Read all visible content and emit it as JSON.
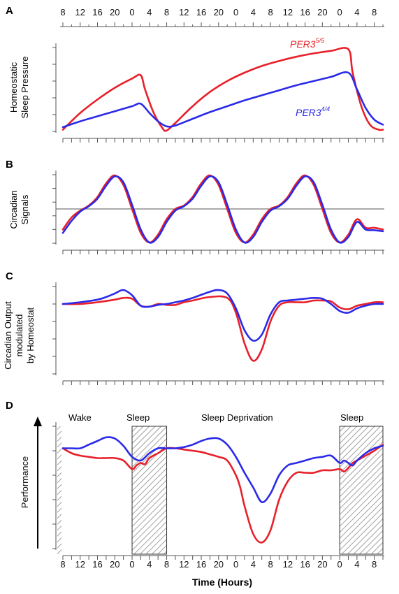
{
  "colors": {
    "red": "#e8202a",
    "blue": "#2a2ae8",
    "axis": "#555555",
    "hatch": "#888888"
  },
  "panel_letters": [
    "A",
    "B",
    "C",
    "D"
  ],
  "y_labels": {
    "A": [
      "Homeostatic",
      "Sleep Pressure"
    ],
    "B": [
      "Circadian",
      "Signals"
    ],
    "C": [
      "Circadian Output",
      "modulated",
      "by Homeostat"
    ],
    "D": [
      "Performance"
    ]
  },
  "x_label": "Time (Hours)",
  "top_ticks": [
    "8",
    "12",
    "16",
    "20",
    "0",
    "4",
    "8",
    "12",
    "16",
    "20",
    "0",
    "4",
    "8",
    "12",
    "16",
    "20",
    "0",
    "4",
    "8"
  ],
  "bottom_ticks": [
    "8",
    "12",
    "16",
    "20",
    "0",
    "4",
    "8",
    "12",
    "16",
    "20",
    "0",
    "4",
    "8",
    "12",
    "16",
    "20",
    "0",
    "4",
    "8"
  ],
  "annotations": {
    "wake": "Wake",
    "sleep1": "Sleep",
    "sleep_deprivation": "Sleep Deprivation",
    "sleep2": "Sleep"
  },
  "legend": {
    "per3_55_base": "PER3",
    "per3_55_sup": "5/5",
    "per3_44_base": "PER3",
    "per3_44_sup": "4/4"
  },
  "chart_data": [
    {
      "panel": "A",
      "type": "line",
      "title": "",
      "xlabel": "",
      "ylabel": "Homeostatic Sleep Pressure",
      "x_unit": "hours from start (start = 08:00)",
      "xlim": [
        0,
        74
      ],
      "ylim": [
        0,
        1
      ],
      "series": [
        {
          "name": "PER3 5/5",
          "color": "red",
          "x": [
            0,
            4,
            8,
            12,
            16,
            18,
            19,
            21,
            23,
            24,
            26,
            30,
            34,
            38,
            42,
            46,
            50,
            54,
            58,
            62,
            66,
            67,
            69,
            71,
            73,
            74
          ],
          "y": [
            0.02,
            0.22,
            0.38,
            0.52,
            0.63,
            0.67,
            0.5,
            0.22,
            0.04,
            0.01,
            0.1,
            0.3,
            0.47,
            0.6,
            0.7,
            0.78,
            0.84,
            0.89,
            0.93,
            0.96,
            0.98,
            0.7,
            0.3,
            0.08,
            0.02,
            0.02
          ]
        },
        {
          "name": "PER3 4/4",
          "color": "blue",
          "x": [
            0,
            4,
            8,
            12,
            16,
            18,
            20,
            22,
            24,
            26,
            30,
            34,
            38,
            42,
            46,
            50,
            54,
            58,
            62,
            66,
            68,
            70,
            72,
            74
          ],
          "y": [
            0.05,
            0.12,
            0.18,
            0.24,
            0.3,
            0.33,
            0.22,
            0.12,
            0.06,
            0.07,
            0.15,
            0.23,
            0.3,
            0.37,
            0.43,
            0.49,
            0.55,
            0.6,
            0.65,
            0.7,
            0.5,
            0.28,
            0.14,
            0.08
          ]
        }
      ]
    },
    {
      "panel": "B",
      "type": "line",
      "title": "",
      "xlabel": "",
      "ylabel": "Circadian Signals",
      "x_unit": "hours from start (start = 08:00)",
      "xlim": [
        0,
        74
      ],
      "ylim": [
        -1,
        1
      ],
      "reference_line": 0,
      "series": [
        {
          "name": "PER3 5/5",
          "color": "red",
          "x": [
            0,
            2,
            4,
            6,
            8,
            10,
            12,
            14,
            16,
            18,
            20,
            22,
            24,
            26,
            28,
            30,
            32,
            34,
            36,
            38,
            40,
            42,
            44,
            46,
            48,
            50,
            52,
            54,
            56,
            58,
            60,
            62,
            64,
            66,
            68,
            70,
            72,
            74
          ],
          "y": [
            -0.6,
            -0.25,
            -0.05,
            0.1,
            0.35,
            0.75,
            0.98,
            0.7,
            0.0,
            -0.7,
            -0.98,
            -0.75,
            -0.3,
            0.0,
            0.1,
            0.35,
            0.75,
            0.98,
            0.7,
            0.0,
            -0.7,
            -0.98,
            -0.75,
            -0.3,
            0.0,
            0.1,
            0.35,
            0.75,
            0.98,
            0.7,
            0.0,
            -0.7,
            -0.98,
            -0.75,
            -0.3,
            -0.55,
            -0.55,
            -0.6
          ]
        },
        {
          "name": "PER3 4/4",
          "color": "blue",
          "x": [
            0,
            2,
            4,
            6,
            8,
            10,
            12,
            14,
            16,
            18,
            20,
            22,
            24,
            26,
            28,
            30,
            32,
            34,
            36,
            38,
            40,
            42,
            44,
            46,
            48,
            50,
            52,
            54,
            56,
            58,
            60,
            62,
            64,
            66,
            68,
            70,
            72,
            74
          ],
          "y": [
            -0.7,
            -0.35,
            -0.08,
            0.08,
            0.3,
            0.68,
            0.95,
            0.78,
            0.12,
            -0.6,
            -0.98,
            -0.82,
            -0.38,
            -0.05,
            0.08,
            0.3,
            0.68,
            0.95,
            0.78,
            0.12,
            -0.6,
            -0.98,
            -0.82,
            -0.38,
            -0.05,
            0.08,
            0.3,
            0.68,
            0.95,
            0.78,
            0.12,
            -0.6,
            -0.98,
            -0.82,
            -0.38,
            -0.6,
            -0.62,
            -0.65
          ]
        }
      ]
    },
    {
      "panel": "C",
      "type": "line",
      "title": "",
      "xlabel": "",
      "ylabel": "Circadian Output modulated by Homeostat",
      "x_unit": "hours from start (start = 08:00)",
      "xlim": [
        0,
        74
      ],
      "ylim": [
        0,
        1
      ],
      "series": [
        {
          "name": "PER3 5/5",
          "color": "red",
          "x": [
            0,
            4,
            8,
            12,
            14,
            16,
            18,
            20,
            22,
            24,
            26,
            28,
            30,
            34,
            38,
            40,
            42,
            44,
            46,
            48,
            50,
            52,
            54,
            56,
            58,
            60,
            62,
            64,
            66,
            68,
            70,
            72,
            74
          ],
          "y": [
            0.8,
            0.8,
            0.82,
            0.85,
            0.87,
            0.86,
            0.78,
            0.77,
            0.8,
            0.79,
            0.79,
            0.82,
            0.84,
            0.88,
            0.87,
            0.7,
            0.35,
            0.15,
            0.28,
            0.6,
            0.78,
            0.82,
            0.82,
            0.82,
            0.84,
            0.84,
            0.83,
            0.76,
            0.74,
            0.78,
            0.8,
            0.82,
            0.82
          ]
        },
        {
          "name": "PER3 4/4",
          "color": "blue",
          "x": [
            0,
            4,
            8,
            10,
            12,
            14,
            16,
            18,
            20,
            22,
            24,
            26,
            28,
            30,
            34,
            36,
            38,
            40,
            42,
            44,
            46,
            48,
            50,
            52,
            54,
            56,
            58,
            60,
            62,
            64,
            66,
            68,
            70,
            72,
            74
          ],
          "y": [
            0.8,
            0.82,
            0.85,
            0.88,
            0.92,
            0.96,
            0.9,
            0.78,
            0.77,
            0.79,
            0.8,
            0.82,
            0.84,
            0.87,
            0.94,
            0.96,
            0.92,
            0.75,
            0.5,
            0.38,
            0.45,
            0.68,
            0.82,
            0.84,
            0.85,
            0.86,
            0.87,
            0.86,
            0.8,
            0.72,
            0.7,
            0.75,
            0.78,
            0.8,
            0.8
          ]
        }
      ]
    },
    {
      "panel": "D",
      "type": "line",
      "title": "",
      "xlabel": "Time (Hours)",
      "ylabel": "Performance",
      "x_unit": "hours from start (start = 08:00)",
      "xlim": [
        0,
        74
      ],
      "ylim": [
        0,
        1
      ],
      "shaded_sleep_intervals_hours": [
        [
          16,
          24
        ],
        [
          64,
          74
        ]
      ],
      "series": [
        {
          "name": "PER3 5/5",
          "color": "red",
          "x": [
            0,
            2,
            4,
            6,
            8,
            10,
            12,
            14,
            16,
            17,
            18,
            19,
            20,
            22,
            24,
            26,
            28,
            30,
            32,
            34,
            36,
            38,
            40,
            41,
            42,
            44,
            46,
            48,
            50,
            52,
            54,
            56,
            58,
            60,
            62,
            64,
            65,
            66,
            67,
            68,
            70,
            72,
            74
          ],
          "y": [
            0.82,
            0.78,
            0.76,
            0.75,
            0.74,
            0.74,
            0.74,
            0.72,
            0.65,
            0.68,
            0.7,
            0.69,
            0.74,
            0.78,
            0.82,
            0.82,
            0.81,
            0.8,
            0.79,
            0.77,
            0.75,
            0.72,
            0.6,
            0.5,
            0.35,
            0.12,
            0.05,
            0.15,
            0.4,
            0.55,
            0.62,
            0.62,
            0.62,
            0.64,
            0.64,
            0.65,
            0.63,
            0.66,
            0.7,
            0.72,
            0.76,
            0.8,
            0.85
          ]
        },
        {
          "name": "PER3 4/4",
          "color": "blue",
          "x": [
            0,
            2,
            4,
            6,
            8,
            10,
            12,
            14,
            16,
            18,
            20,
            22,
            24,
            26,
            28,
            30,
            32,
            34,
            36,
            38,
            40,
            42,
            44,
            46,
            48,
            50,
            52,
            54,
            56,
            58,
            60,
            62,
            64,
            65,
            66,
            67,
            68,
            70,
            72,
            74
          ],
          "y": [
            0.82,
            0.82,
            0.82,
            0.85,
            0.88,
            0.91,
            0.9,
            0.84,
            0.75,
            0.72,
            0.78,
            0.82,
            0.82,
            0.82,
            0.83,
            0.85,
            0.88,
            0.9,
            0.9,
            0.85,
            0.75,
            0.62,
            0.5,
            0.38,
            0.45,
            0.6,
            0.68,
            0.7,
            0.72,
            0.74,
            0.75,
            0.76,
            0.7,
            0.72,
            0.7,
            0.68,
            0.72,
            0.78,
            0.82,
            0.84
          ]
        }
      ]
    }
  ]
}
